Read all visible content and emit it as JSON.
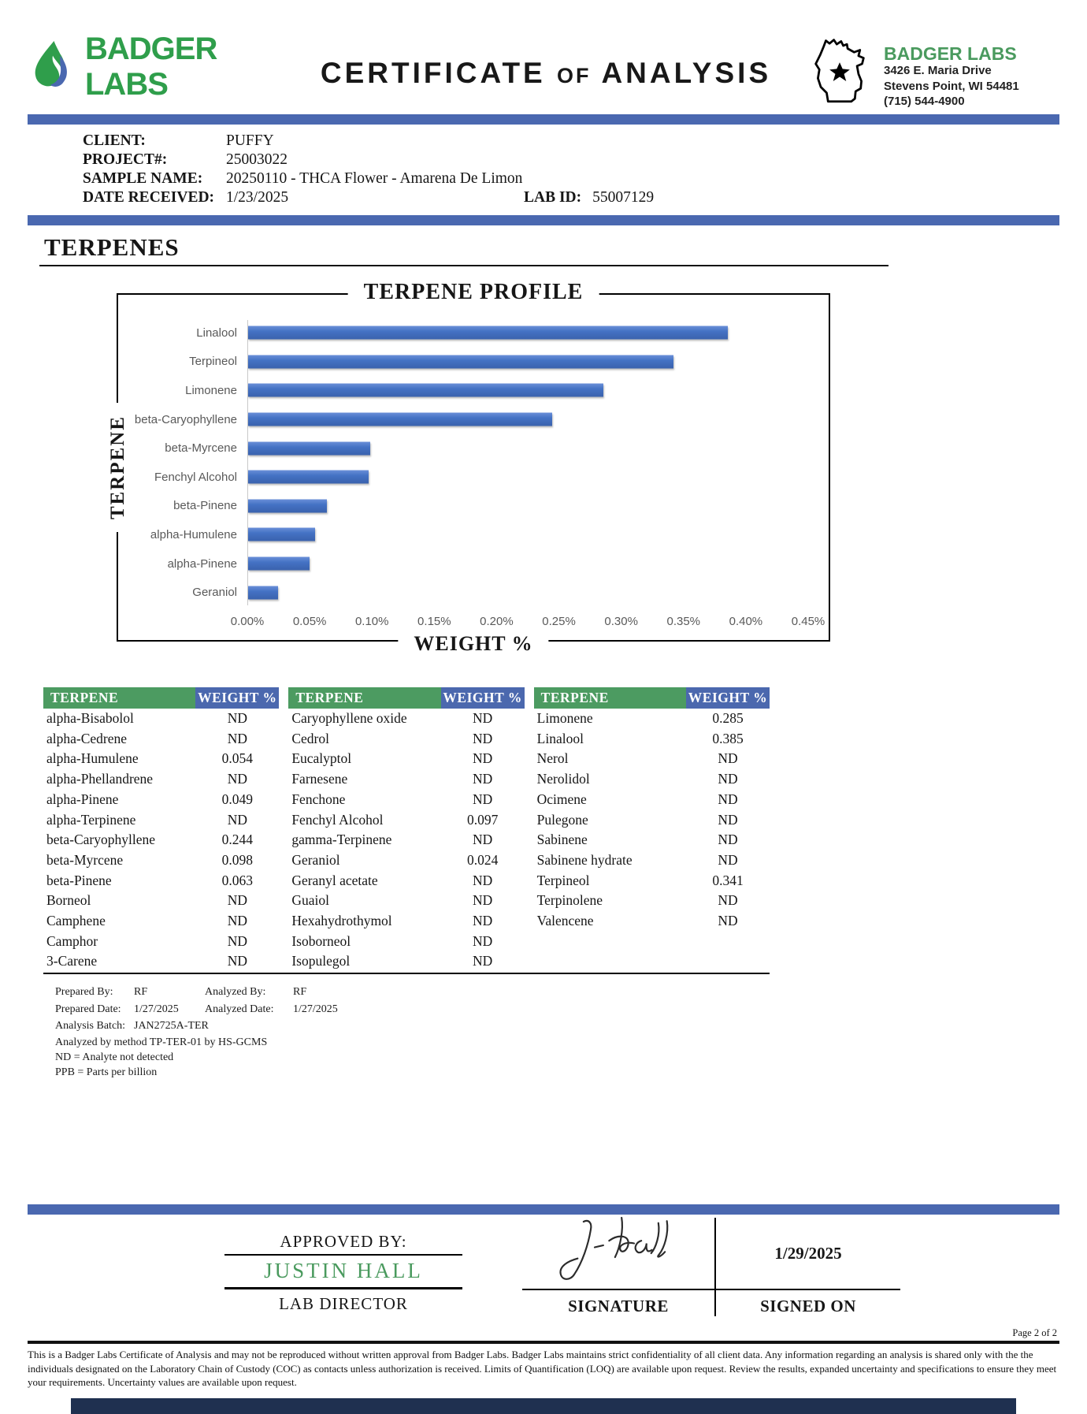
{
  "header": {
    "logo_text": "BADGER LABS",
    "title": {
      "word1": "CERTIFICATE",
      "word2": "OF",
      "word3": "ANALYSIS"
    },
    "address": {
      "name": "BADGER LABS",
      "line1": "3426 E. Maria Drive",
      "line2": "Stevens Point, WI 54481",
      "phone": "(715) 544-4900"
    }
  },
  "sample_info": {
    "client_label": "CLIENT:",
    "client": "PUFFY",
    "project_label": "PROJECT#:",
    "project": "25003022",
    "sample_name_label": "SAMPLE NAME:",
    "sample_name": "20250110 - THCA Flower - Amarena De Limon",
    "date_received_label": "DATE RECEIVED:",
    "date_received": "1/23/2025",
    "lab_id_label": "LAB ID:",
    "lab_id": "55007129"
  },
  "section_title": "TERPENES",
  "chart_data": {
    "type": "bar",
    "orientation": "horizontal",
    "title": "TERPENE PROFILE",
    "xlabel": "WEIGHT %",
    "ylabel": "TERPENE",
    "categories": [
      "Linalool",
      "Terpineol",
      "Limonene",
      "beta-Caryophyllene",
      "beta-Myrcene",
      "Fenchyl Alcohol",
      "beta-Pinene",
      "alpha-Humulene",
      "alpha-Pinene",
      "Geraniol"
    ],
    "values": [
      0.385,
      0.341,
      0.285,
      0.244,
      0.098,
      0.097,
      0.063,
      0.054,
      0.049,
      0.024
    ],
    "xlim": [
      0,
      0.45
    ],
    "tick_step": 0.05,
    "tick_labels": [
      "0.00%",
      "0.05%",
      "0.10%",
      "0.15%",
      "0.20%",
      "0.25%",
      "0.30%",
      "0.35%",
      "0.40%",
      "0.45%"
    ],
    "grid": false,
    "legend": "none",
    "bar_color": "#4472c4"
  },
  "table": {
    "header": {
      "terpene": "TERPENE",
      "weight": "WEIGHT %"
    },
    "columns": [
      [
        {
          "name": "alpha-Bisabolol",
          "value": "ND"
        },
        {
          "name": "alpha-Cedrene",
          "value": "ND"
        },
        {
          "name": "alpha-Humulene",
          "value": "0.054"
        },
        {
          "name": "alpha-Phellandrene",
          "value": "ND"
        },
        {
          "name": "alpha-Pinene",
          "value": "0.049"
        },
        {
          "name": "alpha-Terpinene",
          "value": "ND"
        },
        {
          "name": "beta-Caryophyllene",
          "value": "0.244"
        },
        {
          "name": "beta-Myrcene",
          "value": "0.098"
        },
        {
          "name": "beta-Pinene",
          "value": "0.063"
        },
        {
          "name": "Borneol",
          "value": "ND"
        },
        {
          "name": "Camphene",
          "value": "ND"
        },
        {
          "name": "Camphor",
          "value": "ND"
        },
        {
          "name": "3-Carene",
          "value": "ND"
        }
      ],
      [
        {
          "name": "Caryophyllene oxide",
          "value": "ND"
        },
        {
          "name": "Cedrol",
          "value": "ND"
        },
        {
          "name": "Eucalyptol",
          "value": "ND"
        },
        {
          "name": "Farnesene",
          "value": "ND"
        },
        {
          "name": "Fenchone",
          "value": "ND"
        },
        {
          "name": "Fenchyl Alcohol",
          "value": "0.097"
        },
        {
          "name": "gamma-Terpinene",
          "value": "ND"
        },
        {
          "name": "Geraniol",
          "value": "0.024"
        },
        {
          "name": "Geranyl acetate",
          "value": "ND"
        },
        {
          "name": "Guaiol",
          "value": "ND"
        },
        {
          "name": "Hexahydrothymol",
          "value": "ND"
        },
        {
          "name": "Isoborneol",
          "value": "ND"
        },
        {
          "name": "Isopulegol",
          "value": "ND"
        }
      ],
      [
        {
          "name": "Limonene",
          "value": "0.285"
        },
        {
          "name": "Linalool",
          "value": "0.385"
        },
        {
          "name": "Nerol",
          "value": "ND"
        },
        {
          "name": "Nerolidol",
          "value": "ND"
        },
        {
          "name": "Ocimene",
          "value": "ND"
        },
        {
          "name": "Pulegone",
          "value": "ND"
        },
        {
          "name": "Sabinene",
          "value": "ND"
        },
        {
          "name": "Sabinene hydrate",
          "value": "ND"
        },
        {
          "name": "Terpineol",
          "value": "0.341"
        },
        {
          "name": "Terpinolene",
          "value": "ND"
        },
        {
          "name": "Valencene",
          "value": "ND"
        }
      ]
    ]
  },
  "notes": {
    "prepared_by_label": "Prepared By:",
    "prepared_by": "RF",
    "analyzed_by_label": "Analyzed By:",
    "analyzed_by": "RF",
    "prepared_date_label": "Prepared Date:",
    "prepared_date": "1/27/2025",
    "analyzed_date_label": "Analyzed Date:",
    "analyzed_date": "1/27/2025",
    "analysis_batch_label": "Analysis Batch:",
    "analysis_batch": "JAN2725A-TER",
    "method_note": "Analyzed by method TP-TER-01 by HS-GCMS",
    "nd_note": "ND = Analyte not detected",
    "ppb_note": "PPB = Parts per billion"
  },
  "approval": {
    "approved_by_label": "APPROVED BY:",
    "approver_name": "JUSTIN HALL",
    "approver_title": "LAB DIRECTOR",
    "signature_label": "SIGNATURE",
    "signed_on_label": "SIGNED ON",
    "signed_on_date": "1/29/2025"
  },
  "page_label": "Page 2 of 2",
  "disclaimer": "This is a Badger Labs Certificate of Analysis and may not be reproduced without written approval from Badger Labs. Badger Labs maintains strict confidentiality of all client data. Any information regarding an analysis is shared only with the the individuals designated on the Laboratory Chain of Custody (COC) as contacts unless authorization is received. Limits of Quantification (LOQ) are available upon request. Review the results, expanded uncertainty and specifications to ensure they meet your requirements. Uncertainty values are available upon request.",
  "colors": {
    "divider_blue": "#4a68b0",
    "table_green": "#4c9b61",
    "table_blue": "#4b68ae",
    "bar_blue": "#4472c4",
    "brand_green": "#2f9e4b",
    "name_green": "#4a9a5e",
    "dark_footer": "#1f3050"
  }
}
